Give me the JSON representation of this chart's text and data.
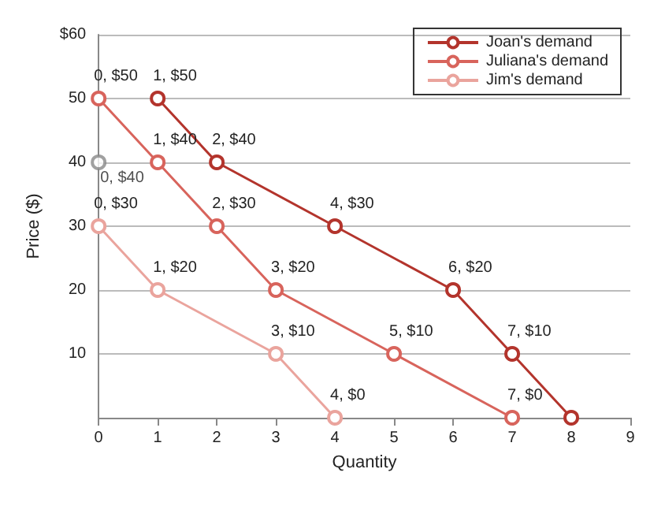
{
  "chart_data": {
    "type": "line",
    "xlabel": "Quantity",
    "ylabel": "Price ($)",
    "xlim": [
      0,
      9
    ],
    "xticks": [
      0,
      1,
      2,
      3,
      4,
      5,
      6,
      7,
      8,
      9
    ],
    "ylim": [
      0,
      60
    ],
    "yticks": [
      {
        "value": 0,
        "label": null
      },
      10,
      20,
      30,
      40,
      50,
      {
        "value": 60,
        "label": "$60"
      }
    ],
    "grid": "y",
    "legend": "top right",
    "marker": "circle",
    "line_style": "solid",
    "series": [
      {
        "name": "Joan's demand",
        "color": "#b3342c",
        "x": [
          1,
          2,
          4,
          6,
          7,
          8
        ],
        "values": [
          50,
          40,
          30,
          20,
          10,
          0
        ],
        "value_labels": [
          "1, $50",
          "2, $40",
          "4, $30",
          "6, $20",
          "7, $10",
          null
        ]
      },
      {
        "name": "Juliana's demand",
        "color": "#d8645c",
        "x": [
          0,
          1,
          2,
          3,
          5,
          7
        ],
        "values": [
          50,
          40,
          30,
          20,
          10,
          0
        ],
        "value_labels": [
          "0, $50",
          "1, $40",
          "2, $30",
          "3, $20",
          "5, $10",
          "7, $0"
        ]
      },
      {
        "name": "Jim's demand",
        "color": "#eaa49d",
        "x": [
          0,
          1,
          3,
          4
        ],
        "values": [
          30,
          20,
          10,
          0
        ],
        "value_labels": [
          "0, $30",
          "1, $20",
          "3, $10",
          "4, $0"
        ]
      },
      {
        "type": "scatter",
        "color": "#888888",
        "x": [
          0
        ],
        "values": [
          40
        ],
        "value_labels": [
          "0, $40"
        ]
      }
    ]
  }
}
